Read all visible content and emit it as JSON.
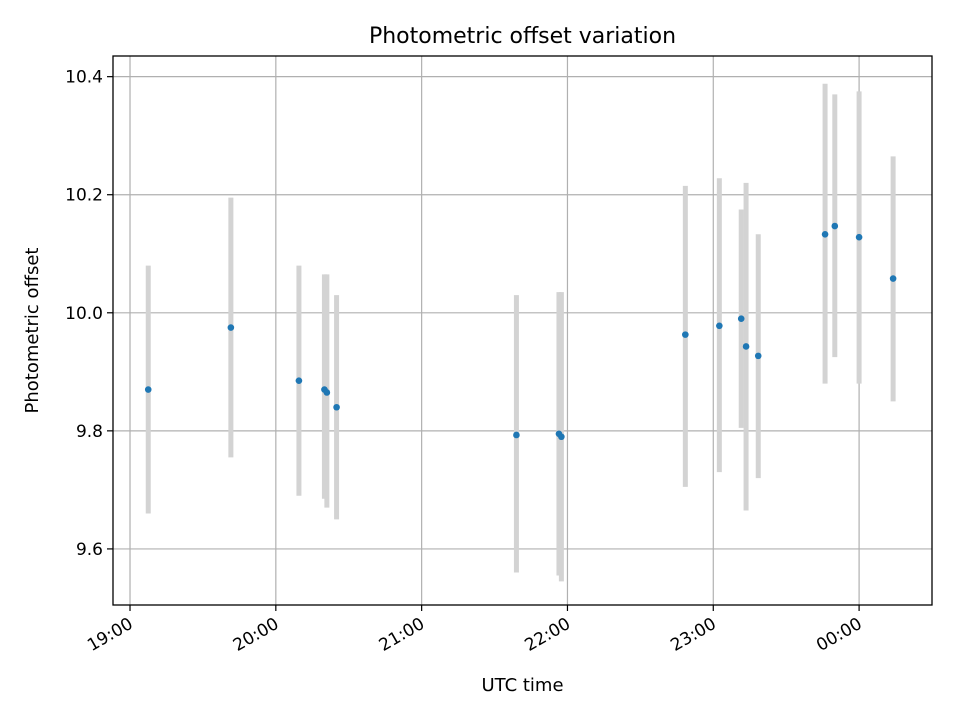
{
  "chart_data": {
    "type": "scatter",
    "title": "Photometric offset variation",
    "xlabel": "UTC time",
    "ylabel": "Photometric offset",
    "x_is_time": true,
    "xlim": [
      "18:53",
      "00:30"
    ],
    "ylim": [
      9.505,
      10.435
    ],
    "x_ticks": [
      "19:00",
      "20:00",
      "21:00",
      "22:00",
      "23:00",
      "00:00"
    ],
    "y_ticks": [
      9.6,
      9.8,
      10.0,
      10.2,
      10.4
    ],
    "y_tick_labels": [
      "9.6",
      "9.8",
      "10.0",
      "10.2",
      "10.4"
    ],
    "grid": true,
    "colors": {
      "point": "#1f77b4",
      "errorbar": "#d3d3d3"
    },
    "points": [
      {
        "x": "19:07.5",
        "y": 9.87,
        "y_low": 9.66,
        "y_high": 10.08
      },
      {
        "x": "19:41.5",
        "y": 9.975,
        "y_low": 9.755,
        "y_high": 10.195
      },
      {
        "x": "20:09.5",
        "y": 9.885,
        "y_low": 9.69,
        "y_high": 10.08
      },
      {
        "x": "20:20",
        "y": 9.87,
        "y_low": 9.685,
        "y_high": 10.065
      },
      {
        "x": "20:21",
        "y": 9.865,
        "y_low": 9.67,
        "y_high": 10.065
      },
      {
        "x": "20:25",
        "y": 9.84,
        "y_low": 9.65,
        "y_high": 10.03
      },
      {
        "x": "21:39",
        "y": 9.793,
        "y_low": 9.56,
        "y_high": 10.03
      },
      {
        "x": "21:56.5",
        "y": 9.795,
        "y_low": 9.555,
        "y_high": 10.035
      },
      {
        "x": "21:57.5",
        "y": 9.79,
        "y_low": 9.545,
        "y_high": 10.035
      },
      {
        "x": "22:48.5",
        "y": 9.963,
        "y_low": 9.705,
        "y_high": 10.215
      },
      {
        "x": "23:02.5",
        "y": 9.978,
        "y_low": 9.73,
        "y_high": 10.228
      },
      {
        "x": "23:11.5",
        "y": 9.99,
        "y_low": 9.805,
        "y_high": 10.175
      },
      {
        "x": "23:13.5",
        "y": 9.943,
        "y_low": 9.665,
        "y_high": 10.22
      },
      {
        "x": "23:18.5",
        "y": 9.927,
        "y_low": 9.72,
        "y_high": 10.133
      },
      {
        "x": "23:46",
        "y": 10.133,
        "y_low": 9.88,
        "y_high": 10.388
      },
      {
        "x": "23:50",
        "y": 10.147,
        "y_low": 9.925,
        "y_high": 10.37
      },
      {
        "x": "00:00",
        "y": 10.128,
        "y_low": 9.88,
        "y_high": 10.375
      },
      {
        "x": "00:14",
        "y": 10.058,
        "y_low": 9.85,
        "y_high": 10.265
      }
    ]
  }
}
